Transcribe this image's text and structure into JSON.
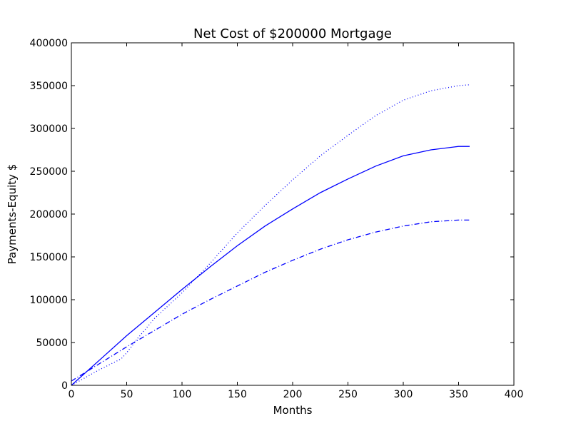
{
  "chart_data": {
    "type": "line",
    "title": "Net Cost of $200000 Mortgage",
    "xlabel": "Months",
    "ylabel": "Payments-Equity $",
    "xlim": [
      0,
      400
    ],
    "ylim": [
      0,
      400000
    ],
    "x_ticks": [
      0,
      50,
      100,
      150,
      200,
      250,
      300,
      350,
      400
    ],
    "y_ticks": [
      0,
      50000,
      100000,
      150000,
      200000,
      250000,
      300000,
      350000,
      400000
    ],
    "grid": false,
    "legend": "none",
    "series": [
      {
        "style": "solid",
        "color": "#0000ff",
        "x": [
          0,
          25,
          50,
          75,
          100,
          125,
          150,
          175,
          200,
          225,
          250,
          275,
          300,
          325,
          350,
          360
        ],
        "y": [
          0,
          29000,
          58000,
          85000,
          112000,
          138000,
          163000,
          186000,
          206000,
          225000,
          241000,
          256000,
          268000,
          275000,
          279000,
          279000
        ]
      },
      {
        "style": "dotted",
        "color": "#0000ff",
        "x": [
          0,
          25,
          45,
          50,
          60,
          75,
          100,
          125,
          150,
          175,
          200,
          225,
          250,
          275,
          300,
          325,
          350,
          360
        ],
        "y": [
          0,
          18000,
          31000,
          38000,
          55000,
          78000,
          108000,
          142000,
          178000,
          210000,
          240000,
          268000,
          292000,
          315000,
          333000,
          344000,
          350000,
          351000
        ]
      },
      {
        "style": "dashdot",
        "color": "#0000ff",
        "x": [
          0,
          25,
          50,
          75,
          100,
          125,
          150,
          175,
          200,
          225,
          250,
          275,
          300,
          325,
          350,
          360
        ],
        "y": [
          5000,
          25000,
          45000,
          64000,
          83000,
          100000,
          116000,
          132000,
          146000,
          159000,
          170000,
          179000,
          186000,
          191000,
          193000,
          193000
        ]
      }
    ]
  }
}
